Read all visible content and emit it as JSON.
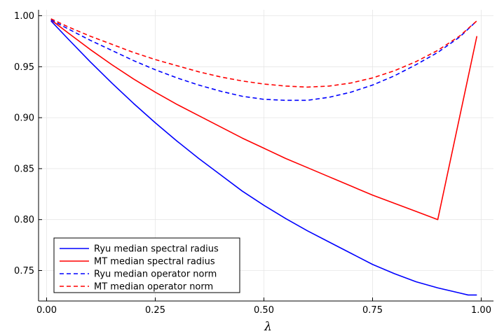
{
  "chart_data": {
    "type": "line",
    "title": "",
    "xlabel": "λ",
    "ylabel": "",
    "xlim": [
      0.0,
      1.0
    ],
    "ylim": [
      0.722,
      1.005
    ],
    "xticks": [
      0.0,
      0.25,
      0.5,
      0.75,
      1.0
    ],
    "xtick_labels": [
      "0.00",
      "0.25",
      "0.50",
      "0.75",
      "1.00"
    ],
    "yticks": [
      0.75,
      0.8,
      0.85,
      0.9,
      0.95,
      1.0
    ],
    "ytick_labels": [
      "0.75",
      "0.80",
      "0.85",
      "0.90",
      "0.95",
      "1.00"
    ],
    "grid": true,
    "legend_position": "bottom-left",
    "series": [
      {
        "name": "Ryu median spectral radius",
        "color": "#0000ff",
        "dash": "solid",
        "x": [
          0.01,
          0.05,
          0.1,
          0.15,
          0.2,
          0.25,
          0.3,
          0.35,
          0.4,
          0.45,
          0.5,
          0.55,
          0.6,
          0.65,
          0.7,
          0.75,
          0.8,
          0.85,
          0.9,
          0.95,
          0.97,
          0.99
        ],
        "y": [
          0.995,
          0.977,
          0.955,
          0.934,
          0.914,
          0.895,
          0.877,
          0.86,
          0.844,
          0.828,
          0.814,
          0.801,
          0.789,
          0.778,
          0.767,
          0.756,
          0.747,
          0.739,
          0.733,
          0.728,
          0.726,
          0.726
        ]
      },
      {
        "name": "MT median spectral radius",
        "color": "#ff0000",
        "dash": "solid",
        "x": [
          0.01,
          0.05,
          0.1,
          0.15,
          0.2,
          0.25,
          0.3,
          0.35,
          0.4,
          0.45,
          0.5,
          0.55,
          0.6,
          0.65,
          0.7,
          0.75,
          0.8,
          0.85,
          0.9,
          0.99
        ],
        "y": [
          0.996,
          0.983,
          0.967,
          0.952,
          0.938,
          0.925,
          0.913,
          0.902,
          0.891,
          0.88,
          0.87,
          0.86,
          0.851,
          0.842,
          0.833,
          0.824,
          0.816,
          0.808,
          0.8,
          0.98
        ]
      },
      {
        "name": "Ryu median operator norm",
        "color": "#0000ff",
        "dash": "dashed",
        "x": [
          0.01,
          0.05,
          0.1,
          0.15,
          0.2,
          0.25,
          0.3,
          0.35,
          0.4,
          0.45,
          0.5,
          0.55,
          0.6,
          0.65,
          0.7,
          0.75,
          0.8,
          0.85,
          0.9,
          0.95,
          0.99
        ],
        "y": [
          0.996,
          0.987,
          0.976,
          0.966,
          0.956,
          0.947,
          0.939,
          0.932,
          0.926,
          0.921,
          0.918,
          0.917,
          0.917,
          0.92,
          0.925,
          0.932,
          0.941,
          0.952,
          0.964,
          0.979,
          0.995
        ]
      },
      {
        "name": "MT median operator norm",
        "color": "#ff0000",
        "dash": "dashed",
        "x": [
          0.01,
          0.05,
          0.1,
          0.15,
          0.2,
          0.25,
          0.3,
          0.35,
          0.4,
          0.45,
          0.5,
          0.55,
          0.6,
          0.65,
          0.7,
          0.75,
          0.8,
          0.85,
          0.9,
          0.95,
          0.99
        ],
        "y": [
          0.997,
          0.989,
          0.98,
          0.972,
          0.964,
          0.957,
          0.951,
          0.945,
          0.94,
          0.936,
          0.933,
          0.931,
          0.93,
          0.931,
          0.934,
          0.939,
          0.946,
          0.955,
          0.966,
          0.98,
          0.995
        ]
      }
    ]
  }
}
